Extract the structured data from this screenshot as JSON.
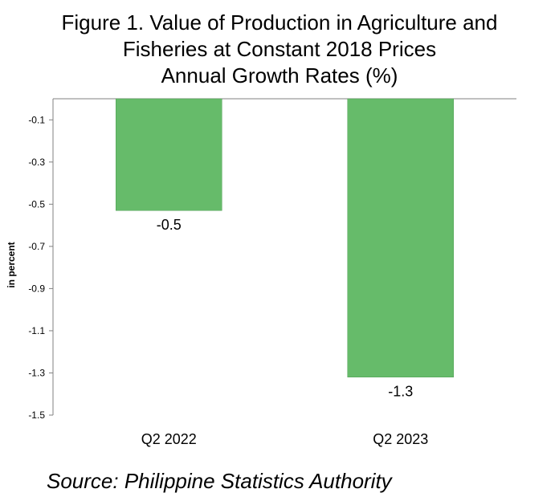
{
  "chart_data": {
    "type": "bar",
    "title_lines": [
      "Figure 1. Value of Production in Agriculture and",
      "Fisheries at Constant 2018 Prices",
      "Annual Growth Rates (%)"
    ],
    "xlabel": "",
    "ylabel": "in percent",
    "categories": [
      "Q2 2022",
      "Q2 2023"
    ],
    "values": [
      -0.53,
      -1.32
    ],
    "data_labels": [
      "-0.5",
      "-1.3"
    ],
    "yticks": [
      "-0.1",
      "-0.3",
      "-0.5",
      "-0.7",
      "-0.9",
      "-1.1",
      "-1.3",
      "-1.5"
    ],
    "ylim": [
      -1.5,
      0
    ],
    "bar_color": "#66bb6a",
    "grid": false
  },
  "source": "Source: Philippine Statistics Authority"
}
